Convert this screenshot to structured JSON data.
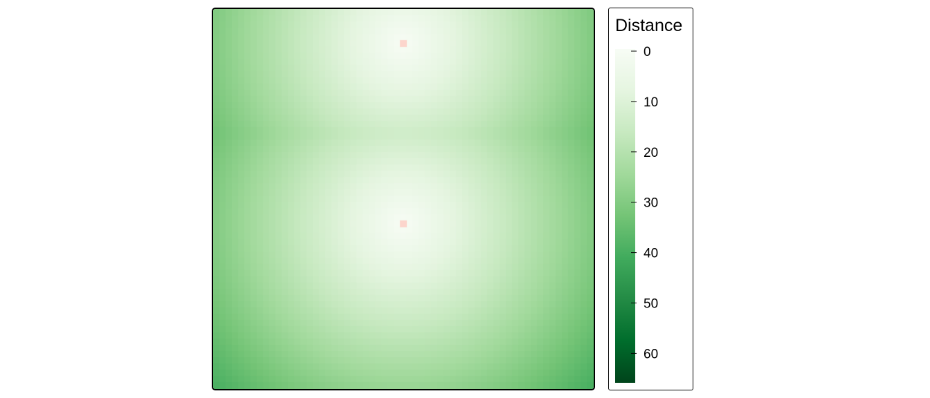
{
  "chart_data": {
    "type": "heatmap",
    "title": "",
    "xlabel": "",
    "ylabel": "",
    "legend": {
      "title": "Distance",
      "position": "right",
      "ticks": [
        0,
        10,
        20,
        30,
        40,
        50,
        60
      ],
      "range": [
        0,
        66
      ]
    },
    "grid": {
      "cols": 61,
      "rows": 61
    },
    "sources": [
      {
        "col": 30,
        "row": 5
      },
      {
        "col": 30,
        "row": 34
      }
    ],
    "colormap": [
      "#f7fcf5",
      "#e5f5e0",
      "#c7e9c0",
      "#a1d99b",
      "#74c476",
      "#41ab5d",
      "#238b45",
      "#006d2c",
      "#00441b"
    ],
    "source_color": "#fcd5cc",
    "gridlines": false
  }
}
